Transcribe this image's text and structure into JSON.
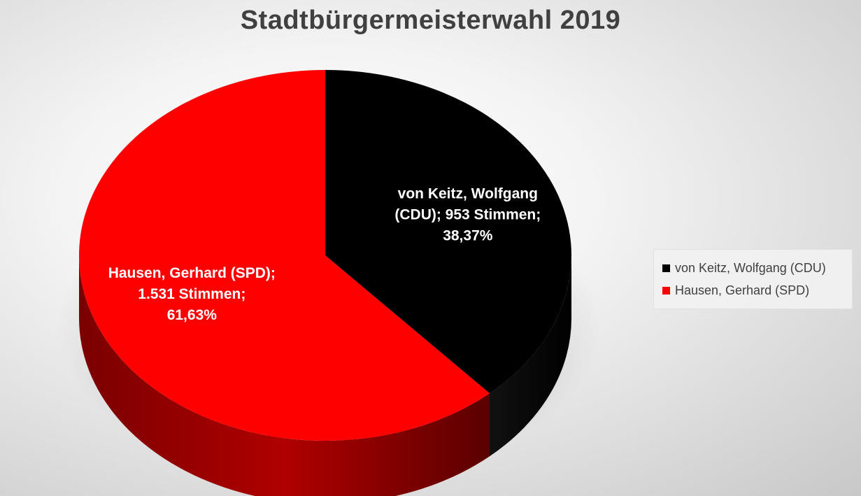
{
  "chart_data": {
    "type": "pie",
    "title": "Stadtbürgermeisterwahl 2019",
    "slices": [
      {
        "name": "von Keitz, Wolfgang (CDU)",
        "value": 953,
        "percent": 38.37,
        "color": "#000000",
        "side_color": "#1a1a1a",
        "label_lines": [
          "von Keitz, Wolfgang",
          "(CDU); 953 Stimmen;",
          "38,37%"
        ]
      },
      {
        "name": "Hausen, Gerhard (SPD)",
        "value": 1531,
        "percent": 61.63,
        "color": "#ff0000",
        "side_color": "#a00000",
        "label_lines": [
          "Hausen, Gerhard (SPD);",
          "1.531 Stimmen;",
          "61,63%"
        ]
      }
    ],
    "legend_position": "right"
  }
}
